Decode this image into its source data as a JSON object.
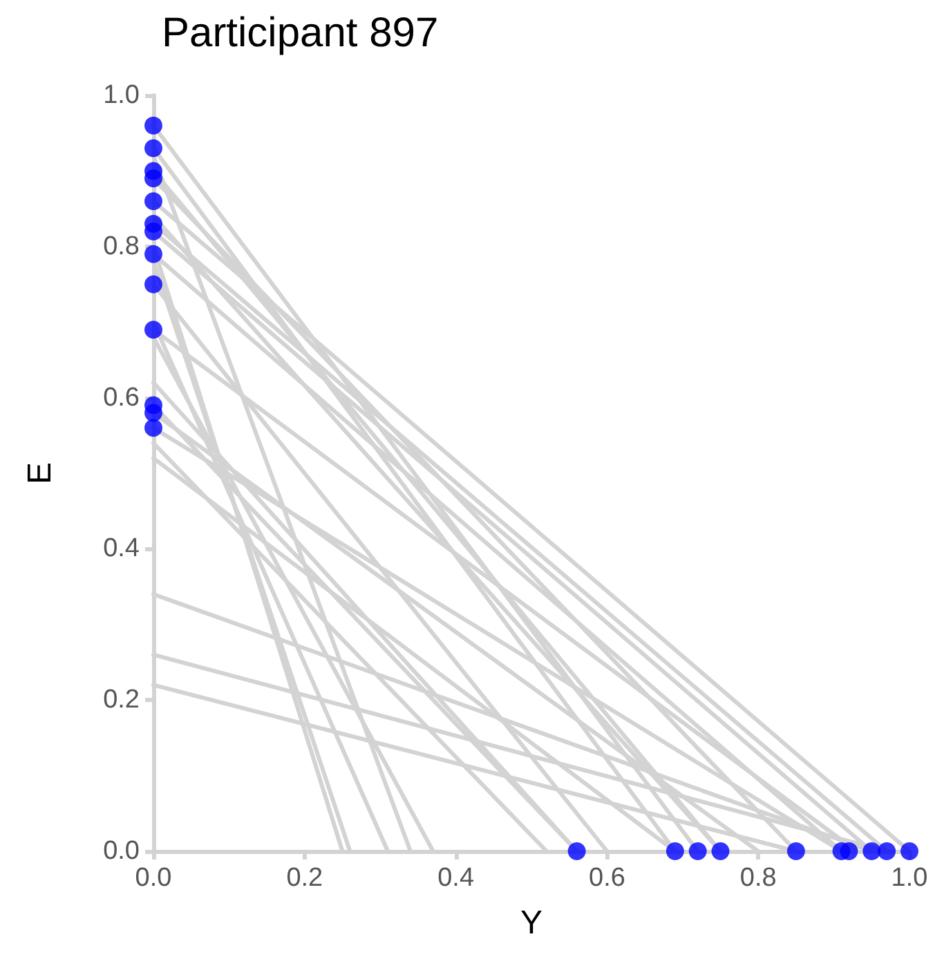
{
  "chart_data": {
    "type": "line",
    "title": "Participant 897",
    "xlabel": "Y",
    "ylabel": "E",
    "xlim": [
      0,
      1
    ],
    "ylim": [
      0,
      1
    ],
    "xticks": [
      {
        "value": 0,
        "label": "0.0"
      },
      {
        "value": 0.2,
        "label": "0.2"
      },
      {
        "value": 0.4,
        "label": "0.4"
      },
      {
        "value": 0.6,
        "label": "0.6"
      },
      {
        "value": 0.8,
        "label": "0.8"
      },
      {
        "value": 1,
        "label": "1.0"
      }
    ],
    "yticks": [
      {
        "value": 0,
        "label": "0.0"
      },
      {
        "value": 0.2,
        "label": "0.2"
      },
      {
        "value": 0.4,
        "label": "0.4"
      },
      {
        "value": 0.6,
        "label": "0.6"
      },
      {
        "value": 0.8,
        "label": "0.8"
      },
      {
        "value": 1,
        "label": "1.0"
      }
    ],
    "grid": false,
    "marker": "none",
    "line_style": "solid",
    "series": [
      {
        "color": "#d3d3d3",
        "x": [
          0,
          0.72
        ],
        "values": [
          0.96,
          0
        ]
      },
      {
        "color": "#d3d3d3",
        "x": [
          0,
          0.69
        ],
        "values": [
          0.93,
          0
        ]
      },
      {
        "color": "#d3d3d3",
        "x": [
          0,
          0.75
        ],
        "values": [
          0.9,
          0
        ]
      },
      {
        "color": "#d3d3d3",
        "x": [
          0,
          0.85
        ],
        "values": [
          0.89,
          0
        ]
      },
      {
        "color": "#d3d3d3",
        "x": [
          0,
          1
        ],
        "values": [
          0.86,
          0
        ]
      },
      {
        "color": "#d3d3d3",
        "x": [
          0,
          0.97
        ],
        "values": [
          0.83,
          0
        ]
      },
      {
        "color": "#d3d3d3",
        "x": [
          0,
          0.95
        ],
        "values": [
          0.82,
          0
        ]
      },
      {
        "color": "#d3d3d3",
        "x": [
          0,
          0.91
        ],
        "values": [
          0.79,
          0
        ]
      },
      {
        "color": "#d3d3d3",
        "x": [
          0,
          0.6
        ],
        "values": [
          0.75,
          0
        ]
      },
      {
        "color": "#d3d3d3",
        "x": [
          0,
          0.93
        ],
        "values": [
          0.69,
          0
        ]
      },
      {
        "color": "#d3d3d3",
        "x": [
          0,
          0.56
        ],
        "values": [
          0.59,
          0
        ]
      },
      {
        "color": "#d3d3d3",
        "x": [
          0,
          0.8
        ],
        "values": [
          0.58,
          0
        ]
      },
      {
        "color": "#d3d3d3",
        "x": [
          0,
          0.91
        ],
        "values": [
          0.56,
          0
        ]
      },
      {
        "color": "#d3d3d3",
        "x": [
          0,
          0.52
        ],
        "values": [
          0.54,
          0
        ]
      },
      {
        "color": "#d3d3d3",
        "x": [
          0,
          0.69
        ],
        "values": [
          0.52,
          0
        ]
      },
      {
        "color": "#d3d3d3",
        "x": [
          0,
          0.95
        ],
        "values": [
          0.34,
          0
        ]
      },
      {
        "color": "#d3d3d3",
        "x": [
          0,
          0.97
        ],
        "values": [
          0.26,
          0
        ]
      },
      {
        "color": "#d3d3d3",
        "x": [
          0,
          0.85
        ],
        "values": [
          0.22,
          0
        ]
      },
      {
        "color": "#d3d3d3",
        "x": [
          0,
          0.25
        ],
        "values": [
          0.8,
          0
        ]
      },
      {
        "color": "#d3d3d3",
        "x": [
          0,
          0.26
        ],
        "values": [
          0.78,
          0
        ]
      },
      {
        "color": "#d3d3d3",
        "x": [
          0,
          0.31
        ],
        "values": [
          0.7,
          0
        ]
      },
      {
        "color": "#d3d3d3",
        "x": [
          0,
          0.34
        ],
        "values": [
          0.92,
          0
        ]
      },
      {
        "color": "#d3d3d3",
        "x": [
          0,
          0.37
        ],
        "values": [
          0.68,
          0
        ]
      },
      {
        "color": "#d3d3d3",
        "x": [
          0,
          0.56
        ],
        "values": [
          0.62,
          0
        ]
      },
      {
        "color": "#d3d3d3",
        "x": [
          0,
          0.75
        ],
        "values": [
          0.84,
          0
        ]
      },
      {
        "type": "scatter",
        "marker": "circle",
        "color": "#0000ff",
        "x": [
          0,
          0,
          0,
          0,
          0,
          0,
          0,
          0,
          0,
          0,
          0,
          0,
          0,
          0.56,
          0.69,
          0.72,
          0.75,
          0.85,
          0.91,
          0.92,
          0.95,
          0.97,
          1
        ],
        "values": [
          0.96,
          0.93,
          0.9,
          0.89,
          0.86,
          0.83,
          0.82,
          0.79,
          0.75,
          0.69,
          0.59,
          0.58,
          0.56,
          0,
          0,
          0,
          0,
          0,
          0,
          0,
          0,
          0,
          0
        ]
      }
    ]
  }
}
